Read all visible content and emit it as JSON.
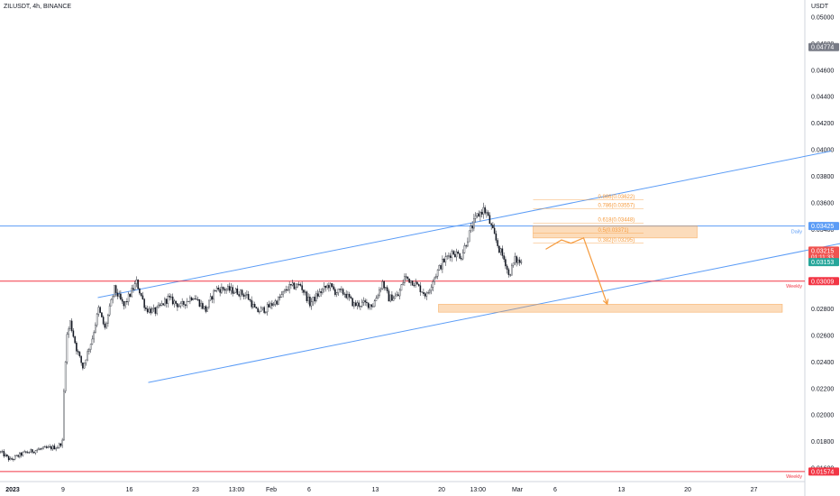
{
  "header": {
    "symbol_line": "ZILUSDT, 4h, BINANCE"
  },
  "axis": {
    "unit": "USDT"
  },
  "chart_data": {
    "type": "candlestick",
    "ylim": [
      0.0152,
      0.0501
    ],
    "price_ticks": [
      "0.05000",
      "0.04800",
      "0.04600",
      "0.04400",
      "0.04200",
      "0.04000",
      "0.03800",
      "0.03600",
      "0.03400",
      "0.03200",
      "0.03000",
      "0.02800",
      "0.02600",
      "0.02400",
      "0.02200",
      "0.02000",
      "0.01800",
      "0.01600"
    ],
    "time_labels": [
      {
        "label": "2023",
        "bold": true,
        "bar": 8
      },
      {
        "label": "9",
        "bar": 40
      },
      {
        "label": "16",
        "bar": 82
      },
      {
        "label": "23",
        "bar": 124
      },
      {
        "label": "13:00",
        "bar": 150
      },
      {
        "label": "Feb",
        "bar": 172
      },
      {
        "label": "6",
        "bar": 196
      },
      {
        "label": "13",
        "bar": 238
      },
      {
        "label": "20",
        "bar": 280
      },
      {
        "label": "13:00",
        "bar": 303
      },
      {
        "label": "Mar",
        "bar": 328
      },
      {
        "label": "6",
        "bar": 352
      },
      {
        "label": "13",
        "bar": 394
      },
      {
        "label": "20",
        "bar": 436
      },
      {
        "label": "27",
        "bar": 478
      }
    ],
    "anchors": [
      [
        0,
        0.0172
      ],
      [
        6,
        0.0166
      ],
      [
        9,
        0.0168
      ],
      [
        14,
        0.0171
      ],
      [
        24,
        0.0174
      ],
      [
        36,
        0.0176
      ],
      [
        39,
        0.018
      ],
      [
        41,
        0.0255
      ],
      [
        44,
        0.027
      ],
      [
        48,
        0.025
      ],
      [
        52,
        0.0236
      ],
      [
        58,
        0.0258
      ],
      [
        62,
        0.028
      ],
      [
        66,
        0.0265
      ],
      [
        72,
        0.0295
      ],
      [
        78,
        0.0282
      ],
      [
        86,
        0.03
      ],
      [
        92,
        0.028
      ],
      [
        98,
        0.0278
      ],
      [
        106,
        0.0288
      ],
      [
        114,
        0.0282
      ],
      [
        122,
        0.029
      ],
      [
        130,
        0.0279
      ],
      [
        136,
        0.0295
      ],
      [
        142,
        0.0295
      ],
      [
        150,
        0.0293
      ],
      [
        156,
        0.029
      ],
      [
        162,
        0.0278
      ],
      [
        168,
        0.028
      ],
      [
        176,
        0.0287
      ],
      [
        182,
        0.0296
      ],
      [
        190,
        0.0298
      ],
      [
        196,
        0.0284
      ],
      [
        202,
        0.0292
      ],
      [
        208,
        0.0298
      ],
      [
        212,
        0.0293
      ],
      [
        218,
        0.0292
      ],
      [
        224,
        0.0283
      ],
      [
        230,
        0.0284
      ],
      [
        236,
        0.0283
      ],
      [
        242,
        0.03
      ],
      [
        246,
        0.0288
      ],
      [
        252,
        0.029
      ],
      [
        256,
        0.0304
      ],
      [
        262,
        0.03
      ],
      [
        270,
        0.029
      ],
      [
        274,
        0.0302
      ],
      [
        280,
        0.0315
      ],
      [
        286,
        0.0323
      ],
      [
        292,
        0.032
      ],
      [
        298,
        0.034
      ],
      [
        302,
        0.035
      ],
      [
        306,
        0.0355
      ],
      [
        308,
        0.0352
      ],
      [
        312,
        0.0338
      ],
      [
        316,
        0.0325
      ],
      [
        320,
        0.0315
      ],
      [
        322,
        0.0305
      ],
      [
        326,
        0.0317
      ],
      [
        330,
        0.0315
      ]
    ],
    "last_bar": 330,
    "annotations": {
      "channel_upper": [
        [
          62,
          0.02885
        ],
        [
          527,
          0.0399
        ]
      ],
      "channel_lower": [
        [
          94,
          0.02245
        ],
        [
          540,
          0.0331
        ]
      ],
      "daily_level": 0.03425,
      "daily_label": "Daily",
      "weekly_levels": [
        {
          "price": 0.03009,
          "label": "Weekly"
        },
        {
          "price": 0.01574,
          "label": "Weekly"
        }
      ],
      "fib_x": [
        338,
        408
      ],
      "fib_levels": [
        {
          "price": 0.03622,
          "label": "0.886(0.03622)"
        },
        {
          "price": 0.03557,
          "label": "0.786(0.03557)"
        },
        {
          "price": 0.03448,
          "label": "0.618(0.03448)"
        },
        {
          "price": 0.03371,
          "label": "0.5(0.03371)"
        },
        {
          "price": 0.03295,
          "label": "0.382(0.03295)"
        }
      ],
      "zone_upper": {
        "x": [
          338,
          442
        ],
        "price": [
          0.03425,
          0.03335
        ]
      },
      "zone_lower": {
        "x": [
          278,
          496
        ],
        "price": [
          0.02835,
          0.02775
        ]
      },
      "projection": [
        [
          346,
          0.0325
        ],
        [
          356,
          0.0332
        ],
        [
          362,
          0.03295
        ],
        [
          370,
          0.03335
        ],
        [
          385,
          0.02835
        ]
      ]
    },
    "price_badges": [
      {
        "text": "0.04774",
        "price": 0.04774,
        "bg": "#787b86"
      },
      {
        "text": "0.03425",
        "price": 0.03425,
        "bg": "#5b9cf6"
      },
      {
        "text": "0.03215",
        "price": 0.0324,
        "bg": "#ef5350",
        "sub": "01:11:33"
      },
      {
        "text": "0.03153",
        "price": 0.03153,
        "bg": "#26a69a"
      },
      {
        "text": "0.03009",
        "price": 0.03009,
        "bg": "#f23645"
      },
      {
        "text": "0.01574",
        "price": 0.01574,
        "bg": "#f23645"
      }
    ]
  },
  "colors": {
    "bull": "#ffffff",
    "bear": "#131722",
    "wick": "#131722",
    "channel": "#5b9cf6",
    "daily": "#5b9cf6",
    "weekly": "#f23645",
    "fib": "#f59a3c",
    "zone": "rgba(245,154,60,0.35)"
  }
}
